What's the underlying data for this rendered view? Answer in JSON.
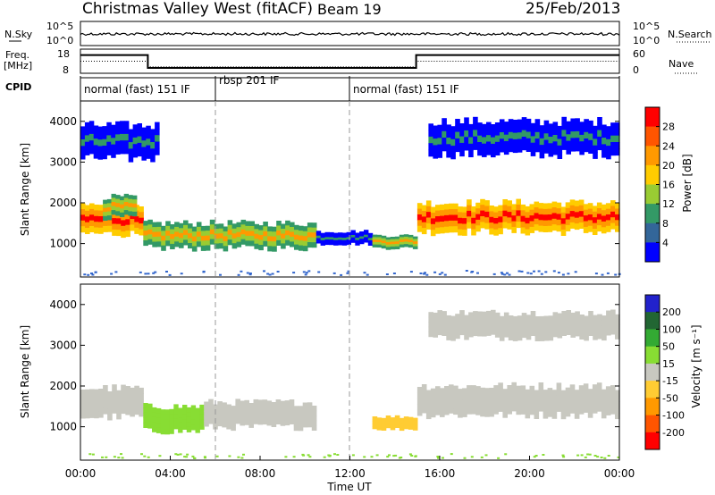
{
  "header": {
    "title": "Christmas Valley West (fitACF)",
    "beam": "Beam 19",
    "date": "25/Feb/2013"
  },
  "top_panels": {
    "noise": {
      "left_label": "N.Sky",
      "right_label": "N.Search",
      "left_ticks": [
        "10^5",
        "10^0"
      ],
      "right_ticks": [
        "10^5",
        "10^0"
      ]
    },
    "freq": {
      "left_label_1": "Freq.",
      "left_label_2": "[MHz]",
      "right_label": "Nave",
      "left_ticks": [
        "18",
        "8"
      ],
      "right_ticks": [
        "60",
        "0"
      ],
      "freq_series": [
        {
          "x": 0.0,
          "y": 16.5
        },
        {
          "x": 3.0,
          "y": 16.5
        },
        {
          "x": 3.0,
          "y": 10.5
        },
        {
          "x": 14.95,
          "y": 10.5
        },
        {
          "x": 14.95,
          "y": 16.5
        },
        {
          "x": 24.0,
          "y": 16.5
        }
      ],
      "nave_series": [
        {
          "x": 0.0,
          "y": 30
        },
        {
          "x": 3.0,
          "y": 30
        },
        {
          "x": 3.0,
          "y": 16
        },
        {
          "x": 14.95,
          "y": 16
        },
        {
          "x": 14.95,
          "y": 30
        },
        {
          "x": 24.0,
          "y": 30
        }
      ]
    },
    "cpid": {
      "label": "CPID",
      "segments": [
        {
          "start": 0,
          "end": 6,
          "text": "normal (fast) 151 IF"
        },
        {
          "start": 6,
          "end": 12,
          "text": "rbsp 201 IF"
        },
        {
          "start": 12,
          "end": 24,
          "text": "normal (fast) 151 IF"
        }
      ]
    }
  },
  "power_panel": {
    "ylabel": "Slant Range [km]",
    "colorbar_label": "Power [dB]",
    "colorbar_ticks": [
      "28",
      "24",
      "20",
      "16",
      "12",
      "8",
      "4"
    ],
    "colorbar_colors": [
      "#ff0000",
      "#ff5500",
      "#ff9900",
      "#ffcc00",
      "#99cc33",
      "#339966",
      "#336699",
      "#0000ff"
    ]
  },
  "velocity_panel": {
    "ylabel": "Slant Range [km]",
    "colorbar_label": "Velocity [m s⁻¹]",
    "colorbar_ticks": [
      "200",
      "100",
      "50",
      "15",
      "-15",
      "-50",
      "-100",
      "-200"
    ],
    "colorbar_colors": [
      "#2222cc",
      "#226633",
      "#33aa33",
      "#88dd33",
      "#c8c8c0",
      "#ffcc33",
      "#ff9900",
      "#ff5500",
      "#ff0000"
    ]
  },
  "xaxis": {
    "label": "Time UT",
    "ticks": [
      "00:00",
      "04:00",
      "08:00",
      "12:00",
      "16:00",
      "20:00",
      "00:00"
    ]
  },
  "chart_data": {
    "type": "heatmap",
    "xlabel": "Time UT",
    "ylabel": "Slant Range [km]",
    "xlim": [
      0,
      24
    ],
    "ylim": [
      180,
      4500
    ],
    "yticks": [
      1000,
      2000,
      3000,
      4000
    ],
    "xticks": [
      0,
      4,
      8,
      12,
      16,
      20,
      24
    ],
    "power_bands": [
      {
        "start": 0.0,
        "end": 2.8,
        "center": 1600,
        "width": 700,
        "class": "strong"
      },
      {
        "start": 1.0,
        "end": 2.5,
        "center": 1900,
        "width": 500,
        "class": "medium"
      },
      {
        "start": 2.8,
        "end": 10.5,
        "center": 1200,
        "width": 600,
        "class": "medium"
      },
      {
        "start": 10.5,
        "end": 13.0,
        "center": 1150,
        "width": 300,
        "class": "weak"
      },
      {
        "start": 13.0,
        "end": 15.0,
        "center": 1050,
        "width": 300,
        "class": "medium"
      },
      {
        "start": 15.0,
        "end": 24.0,
        "center": 1650,
        "width": 700,
        "class": "strong"
      },
      {
        "start": 0.0,
        "end": 3.5,
        "center": 3500,
        "width": 800,
        "class": "weak"
      },
      {
        "start": 15.5,
        "end": 24.0,
        "center": 3600,
        "width": 800,
        "class": "weak"
      }
    ],
    "velocity_bands": [
      {
        "start": 0.0,
        "end": 2.8,
        "center": 1600,
        "width": 700,
        "value": 0
      },
      {
        "start": 2.8,
        "end": 5.5,
        "center": 1200,
        "width": 600,
        "value": 30
      },
      {
        "start": 5.5,
        "end": 10.5,
        "center": 1300,
        "width": 600,
        "value": 0
      },
      {
        "start": 13.0,
        "end": 15.0,
        "center": 1100,
        "width": 300,
        "value": -40
      },
      {
        "start": 15.0,
        "end": 24.0,
        "center": 1650,
        "width": 700,
        "value": 0
      },
      {
        "start": 15.5,
        "end": 24.0,
        "center": 3500,
        "width": 600,
        "value": 0
      }
    ]
  }
}
